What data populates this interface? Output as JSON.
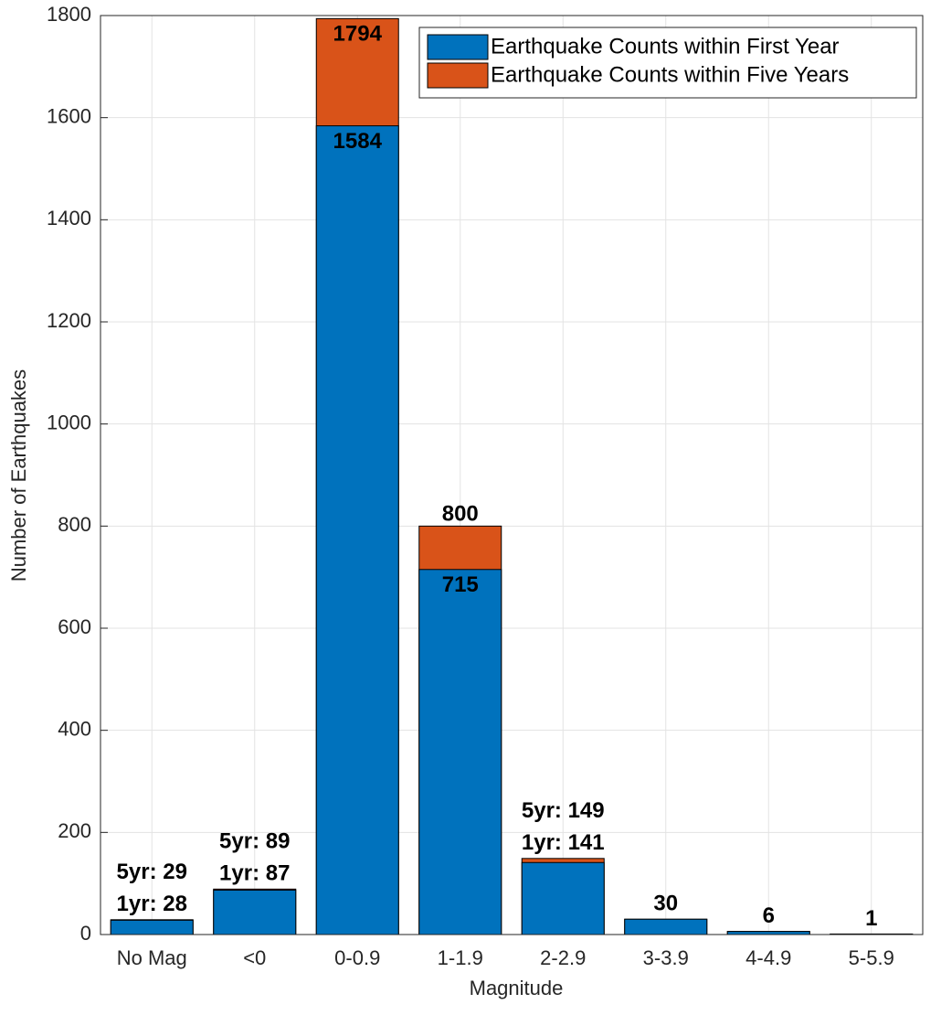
{
  "chart_data": {
    "type": "bar",
    "barmode": "overlay",
    "categories": [
      "No Mag",
      "<0",
      "0-0.9",
      "1-1.9",
      "2-2.9",
      "3-3.9",
      "4-4.9",
      "5-5.9"
    ],
    "series": [
      {
        "name": "Earthquake Counts within Five Years",
        "color": "#D95319",
        "values": [
          29,
          89,
          1794,
          800,
          149,
          30,
          6,
          1
        ],
        "value_labels": [
          "5yr: 29",
          "5yr: 89",
          "1794",
          "800",
          "5yr: 149",
          "30",
          "6",
          "1"
        ]
      },
      {
        "name": "Earthquake Counts within First Year",
        "color": "#0072BD",
        "values": [
          28,
          87,
          1584,
          715,
          141,
          30,
          6,
          1
        ],
        "value_labels": [
          "1yr: 28",
          "1yr: 87",
          "1584",
          "715",
          "1yr: 141",
          null,
          null,
          null
        ]
      }
    ],
    "legend_order": [
      1,
      0
    ],
    "xlabel": "Magnitude",
    "ylabel": "Number of Earthquakes",
    "ylim": [
      0,
      1800
    ],
    "yticks": [
      0,
      200,
      400,
      600,
      800,
      1000,
      1200,
      1400,
      1600,
      1800
    ],
    "grid": true,
    "legend": "upper right"
  }
}
